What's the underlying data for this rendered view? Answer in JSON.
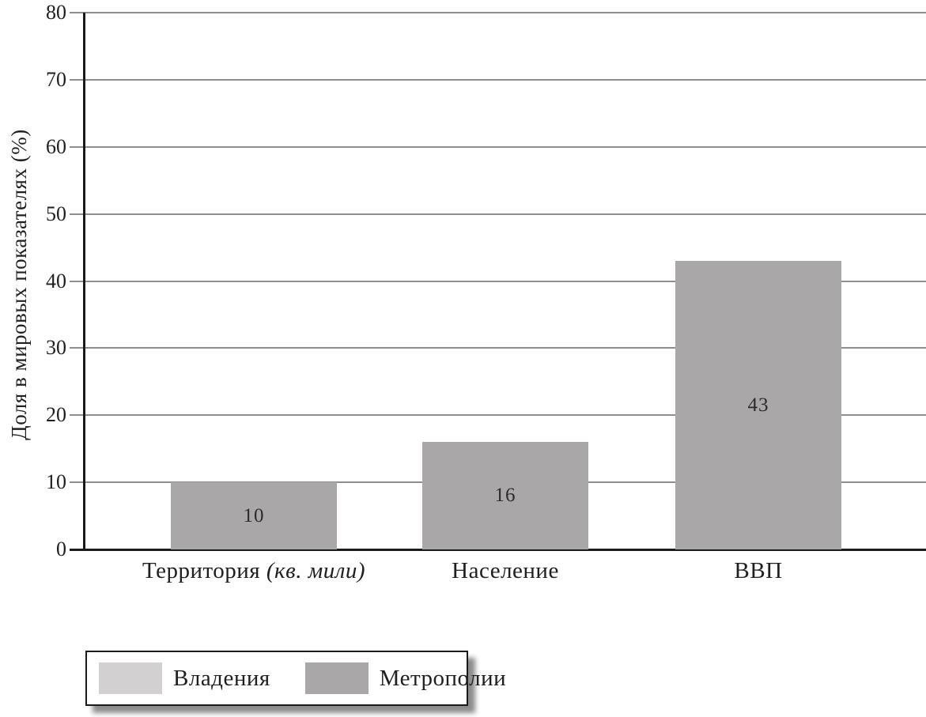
{
  "chart_data": {
    "type": "bar",
    "title": "",
    "ylabel": "Доля в мировых показателях (%)",
    "xlabel": "",
    "ylim": [
      0,
      80
    ],
    "yticks": [
      0,
      10,
      20,
      30,
      40,
      50,
      60,
      70,
      80
    ],
    "grid": true,
    "categories": [
      {
        "text": "Территория",
        "italic": "(кв. мили)"
      },
      {
        "text": "Население",
        "italic": ""
      },
      {
        "text": "ВВП",
        "italic": ""
      }
    ],
    "series": [
      {
        "name": "Владения",
        "color": "#d2d0d0",
        "values": []
      },
      {
        "name": "Метрополии",
        "color": "#a9a7a7",
        "values": [
          10,
          16,
          43
        ]
      }
    ],
    "bar_value_labels": [
      "10",
      "16",
      "43"
    ],
    "legend_position": "bottom-left",
    "colors": {
      "gridline": "#8f8f8f",
      "axis": "#1a1a1a",
      "text": "#1f1f1f",
      "background": "#ffffff"
    }
  }
}
